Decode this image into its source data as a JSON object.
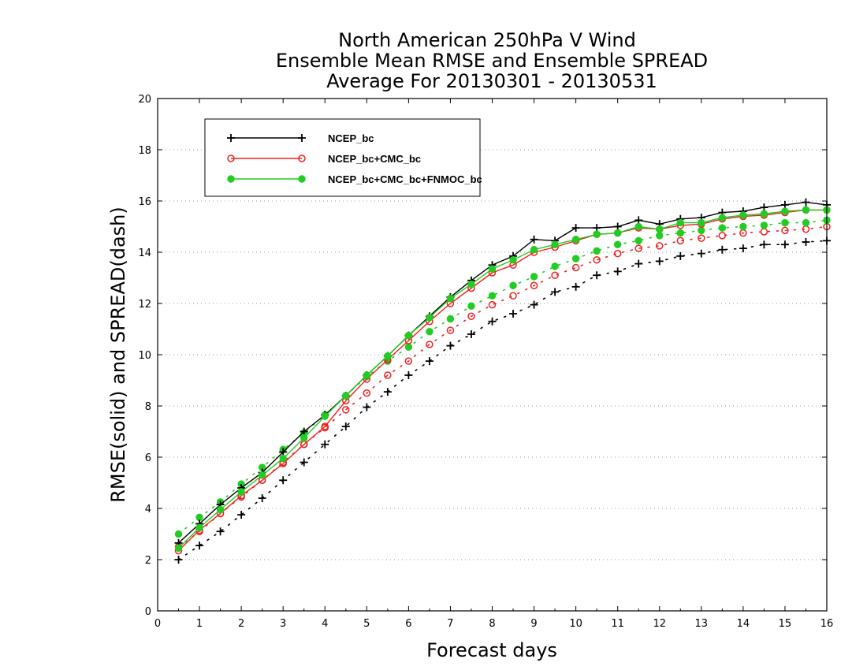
{
  "titles": {
    "line1": "North American 250hPa V Wind",
    "line2": "Ensemble Mean RMSE and Ensemble SPREAD",
    "line3": "Average For 20130301 - 20130531"
  },
  "chart_data": {
    "type": "line",
    "xlabel": "Forecast days",
    "ylabel": "RMSE(solid) and SPREAD(dash)",
    "xlim": [
      0,
      16
    ],
    "ylim": [
      0,
      20
    ],
    "x_ticks": [
      0,
      1,
      2,
      3,
      4,
      5,
      6,
      7,
      8,
      9,
      10,
      11,
      12,
      13,
      14,
      15,
      16
    ],
    "y_ticks": [
      0,
      2,
      4,
      6,
      8,
      10,
      12,
      14,
      16,
      18,
      20
    ],
    "grid": "horizontal dotted at y ticks",
    "legend_position": "top-left",
    "x": [
      0.5,
      1,
      1.5,
      2,
      2.5,
      3,
      3.5,
      4,
      4.5,
      5,
      5.5,
      6,
      6.5,
      7,
      7.5,
      8,
      8.5,
      9,
      9.5,
      10,
      10.5,
      11,
      11.5,
      12,
      12.5,
      13,
      13.5,
      14,
      14.5,
      15,
      15.5,
      16
    ],
    "series": [
      {
        "name": "NCEP_bc",
        "color": "#000000",
        "marker": "plus",
        "rmse": [
          2.65,
          3.4,
          4.15,
          4.8,
          5.4,
          6.2,
          7.0,
          7.65,
          8.4,
          9.2,
          9.95,
          10.75,
          11.5,
          12.25,
          12.9,
          13.5,
          13.85,
          14.5,
          14.45,
          14.95,
          14.95,
          15.0,
          15.25,
          15.1,
          15.3,
          15.35,
          15.55,
          15.6,
          15.75,
          15.85,
          15.95,
          15.85
        ],
        "spread": [
          2.0,
          2.55,
          3.1,
          3.75,
          4.4,
          5.1,
          5.8,
          6.5,
          7.2,
          7.95,
          8.55,
          9.2,
          9.75,
          10.35,
          10.8,
          11.3,
          11.6,
          11.95,
          12.45,
          12.65,
          13.1,
          13.25,
          13.55,
          13.65,
          13.85,
          13.95,
          14.1,
          14.15,
          14.3,
          14.3,
          14.4,
          14.45
        ]
      },
      {
        "name": "NCEP_bc+CMC_bc",
        "color": "#ee2222",
        "marker": "open-circle",
        "rmse": [
          2.35,
          3.15,
          3.8,
          4.5,
          5.1,
          5.75,
          6.5,
          7.2,
          8.2,
          9.05,
          9.8,
          10.55,
          11.3,
          12.0,
          12.6,
          13.2,
          13.5,
          14.0,
          14.2,
          14.45,
          14.7,
          14.75,
          14.95,
          14.9,
          15.05,
          15.1,
          15.3,
          15.4,
          15.45,
          15.55,
          15.65,
          15.65
        ],
        "spread": [
          2.5,
          3.1,
          3.8,
          4.45,
          5.1,
          5.8,
          6.5,
          7.15,
          7.85,
          8.5,
          9.2,
          9.75,
          10.4,
          10.95,
          11.5,
          11.95,
          12.3,
          12.7,
          13.1,
          13.4,
          13.7,
          13.95,
          14.15,
          14.25,
          14.45,
          14.55,
          14.65,
          14.75,
          14.8,
          14.85,
          14.9,
          15.0
        ]
      },
      {
        "name": "NCEP_bc+CMC_bc+FNMOC_bc",
        "color": "#22cc22",
        "marker": "filled-circle",
        "rmse": [
          2.45,
          3.25,
          3.95,
          4.65,
          5.3,
          5.95,
          6.75,
          7.6,
          8.4,
          9.2,
          9.95,
          10.75,
          11.45,
          12.2,
          12.75,
          13.35,
          13.7,
          14.1,
          14.3,
          14.5,
          14.7,
          14.75,
          15.0,
          14.9,
          15.15,
          15.15,
          15.35,
          15.45,
          15.5,
          15.6,
          15.65,
          15.65
        ],
        "spread": [
          3.0,
          3.65,
          4.25,
          4.95,
          5.6,
          6.3,
          6.95,
          7.65,
          8.4,
          9.15,
          9.75,
          10.3,
          10.9,
          11.4,
          11.9,
          12.3,
          12.7,
          13.05,
          13.45,
          13.75,
          14.05,
          14.3,
          14.45,
          14.65,
          14.75,
          14.85,
          14.95,
          15.0,
          15.05,
          15.15,
          15.15,
          15.25
        ]
      }
    ]
  }
}
